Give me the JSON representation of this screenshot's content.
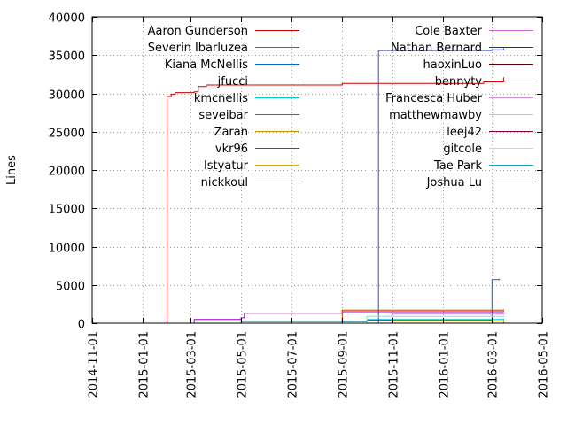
{
  "chart_data": {
    "type": "line",
    "ylabel": "Lines",
    "ylim": [
      0,
      40000
    ],
    "xlim": [
      "2014-11-01",
      "2016-05-01"
    ],
    "y_ticks": [
      0,
      5000,
      10000,
      15000,
      20000,
      25000,
      30000,
      35000,
      40000
    ],
    "x_ticks": [
      "2014-11-01",
      "2015-01-01",
      "2015-03-01",
      "2015-05-01",
      "2015-07-01",
      "2015-09-01",
      "2015-11-01",
      "2016-01-01",
      "2016-03-01",
      "2016-05-01"
    ],
    "grid": true,
    "legend_position": "top, two columns",
    "series": [
      {
        "name": "Aaron Gunderson",
        "color": "#cc0000",
        "points": [
          [
            "2014-12-20",
            0
          ],
          [
            "2015-01-01",
            0
          ],
          [
            "2015-01-31",
            29600
          ],
          [
            "2015-02-05",
            29900
          ],
          [
            "2015-02-10",
            30100
          ],
          [
            "2015-03-05",
            30200
          ],
          [
            "2015-03-10",
            30900
          ],
          [
            "2015-03-20",
            31100
          ],
          [
            "2015-08-25",
            31100
          ],
          [
            "2015-09-01",
            31300
          ],
          [
            "2015-10-01",
            31300
          ],
          [
            "2016-02-20",
            31500
          ],
          [
            "2016-03-15",
            32100
          ]
        ]
      },
      {
        "name": "Severin Ibarluzea",
        "color": "#00aa00",
        "points": [
          [
            "2015-02-15",
            0
          ],
          [
            "2016-03-15",
            0
          ]
        ]
      },
      {
        "name": "Kiana McNellis",
        "color": "#0066cc",
        "points": [
          [
            "2015-05-01",
            0
          ],
          [
            "2015-09-01",
            200
          ],
          [
            "2015-10-01",
            400
          ],
          [
            "2016-03-01",
            500
          ],
          [
            "2016-03-01",
            5700
          ],
          [
            "2016-03-10",
            5800
          ]
        ]
      },
      {
        "name": "jfucci",
        "color": "#9900cc",
        "points": [
          [
            "2015-03-01",
            0
          ],
          [
            "2015-03-05",
            500
          ],
          [
            "2015-05-01",
            700
          ],
          [
            "2015-05-05",
            1300
          ],
          [
            "2015-09-01",
            1500
          ],
          [
            "2016-03-15",
            1600
          ]
        ]
      },
      {
        "name": "kmcnellis",
        "color": "#00cccc",
        "points": [
          [
            "2015-04-01",
            0
          ],
          [
            "2015-05-01",
            200
          ],
          [
            "2015-10-01",
            500
          ],
          [
            "2016-03-15",
            600
          ]
        ]
      },
      {
        "name": "seveibar",
        "color": "#cc4400",
        "points": [
          [
            "2015-09-01",
            0
          ],
          [
            "2015-09-01",
            1700
          ],
          [
            "2016-03-15",
            1800
          ]
        ]
      },
      {
        "name": "Zaran",
        "color": "#cc9900",
        "points": [
          [
            "2015-10-20",
            0
          ],
          [
            "2015-11-01",
            300
          ],
          [
            "2016-03-15",
            400
          ]
        ]
      },
      {
        "name": "vkr96",
        "color": "#3344dd",
        "points": [
          [
            "2015-10-15",
            0
          ],
          [
            "2015-10-15",
            35600
          ],
          [
            "2016-03-01",
            35700
          ],
          [
            "2016-03-15",
            35900
          ]
        ]
      },
      {
        "name": "Istyatur",
        "color": "#ddaa00",
        "points": [
          [
            "2015-11-01",
            0
          ],
          [
            "2016-03-15",
            200
          ]
        ]
      },
      {
        "name": "nickkoul",
        "color": "#006600",
        "points": [
          [
            "2015-05-01",
            0
          ],
          [
            "2016-03-15",
            100
          ]
        ]
      },
      {
        "name": "Cole Baxter",
        "color": "#cc66cc",
        "points": [
          [
            "2015-10-01",
            0
          ],
          [
            "2016-03-15",
            100
          ]
        ]
      },
      {
        "name": "Nathan Bernard",
        "color": "#004466",
        "points": [
          [
            "2015-11-01",
            0
          ],
          [
            "2016-03-15",
            100
          ]
        ]
      },
      {
        "name": "haoxinLuo",
        "color": "#660000",
        "points": [
          [
            "2015-12-01",
            0
          ],
          [
            "2016-03-15",
            100
          ]
        ]
      },
      {
        "name": "bennyty",
        "color": "#336600",
        "points": [
          [
            "2016-01-01",
            0
          ],
          [
            "2016-03-15",
            100
          ]
        ]
      },
      {
        "name": "Francesca Huber",
        "color": "#dd88dd",
        "points": [
          [
            "2015-11-01",
            0
          ],
          [
            "2015-11-01",
            1200
          ],
          [
            "2016-03-15",
            1300
          ]
        ]
      },
      {
        "name": "matthewmawby",
        "color": "#88dddd",
        "points": [
          [
            "2015-10-01",
            0
          ],
          [
            "2015-10-01",
            900
          ],
          [
            "2016-03-15",
            1000
          ]
        ]
      },
      {
        "name": "leej42",
        "color": "#880044",
        "points": [
          [
            "2016-01-01",
            0
          ],
          [
            "2016-03-15",
            100
          ]
        ]
      },
      {
        "name": "gitcole",
        "color": "#eeee00",
        "points": [
          [
            "2016-01-01",
            0
          ],
          [
            "2016-03-15",
            100
          ]
        ]
      },
      {
        "name": "Tae Park",
        "color": "#00aabb",
        "points": [
          [
            "2016-01-01",
            0
          ],
          [
            "2016-03-15",
            100
          ]
        ]
      },
      {
        "name": "Joshua Lu",
        "color": "#000000",
        "points": [
          [
            "2016-01-01",
            0
          ],
          [
            "2016-03-15",
            100
          ]
        ]
      }
    ]
  }
}
